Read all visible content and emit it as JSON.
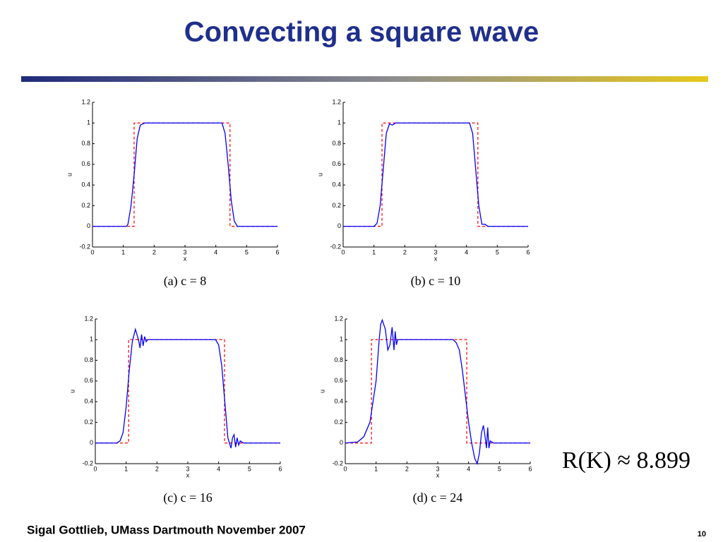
{
  "title": "Convecting a square wave",
  "footer": "Sigal Gottlieb, UMass Dartmouth November 2007",
  "page_number": "10",
  "annotation": "R(K) ≈ 8.899",
  "chart_data": [
    {
      "type": "line",
      "caption": "(a) c = 8",
      "xlabel": "x",
      "ylabel": "u",
      "xlim": [
        0,
        6
      ],
      "ylim": [
        -0.2,
        1.2
      ],
      "xticks": [
        0,
        1,
        2,
        3,
        4,
        5,
        6
      ],
      "yticks": [
        -0.2,
        0,
        0.2,
        0.4,
        0.6,
        0.8,
        1,
        1.2
      ],
      "series": [
        {
          "color": "#ff0000",
          "dash": true,
          "x": [
            0,
            1.35,
            1.35,
            4.46,
            4.46,
            6
          ],
          "values": [
            0,
            0,
            1,
            1,
            0,
            0
          ]
        },
        {
          "color": "#0000ff",
          "dash": false,
          "x": [
            0,
            1.1,
            1.15,
            1.25,
            1.35,
            1.45,
            1.55,
            1.7,
            4.2,
            4.3,
            4.4,
            4.5,
            4.6,
            4.7,
            6
          ],
          "values": [
            0,
            0,
            0.02,
            0.2,
            0.5,
            0.85,
            0.98,
            1,
            1,
            0.9,
            0.6,
            0.25,
            0.05,
            0,
            0
          ]
        }
      ]
    },
    {
      "type": "line",
      "caption": "(b) c = 10",
      "xlabel": "x",
      "ylabel": "u",
      "xlim": [
        0,
        6
      ],
      "ylim": [
        -0.2,
        1.2
      ],
      "xticks": [
        0,
        1,
        2,
        3,
        4,
        5,
        6
      ],
      "yticks": [
        -0.2,
        0,
        0.2,
        0.4,
        0.6,
        0.8,
        1,
        1.2
      ],
      "series": [
        {
          "color": "#ff0000",
          "dash": true,
          "x": [
            0,
            1.26,
            1.26,
            4.37,
            4.37,
            6
          ],
          "values": [
            0,
            0,
            1,
            1,
            0,
            0
          ]
        },
        {
          "color": "#0000ff",
          "dash": false,
          "x": [
            0,
            1.0,
            1.1,
            1.2,
            1.3,
            1.4,
            1.5,
            1.6,
            1.7,
            4.1,
            4.2,
            4.3,
            4.4,
            4.5,
            4.6,
            4.7,
            6
          ],
          "values": [
            0,
            0,
            0.03,
            0.2,
            0.55,
            0.9,
            0.99,
            0.98,
            1,
            1,
            0.9,
            0.55,
            0.2,
            0.02,
            0.02,
            0,
            0
          ]
        }
      ]
    },
    {
      "type": "line",
      "caption": "(c) c = 16",
      "xlabel": "x",
      "ylabel": "u",
      "xlim": [
        0,
        6
      ],
      "ylim": [
        -0.2,
        1.2
      ],
      "xticks": [
        0,
        1,
        2,
        3,
        4,
        5,
        6
      ],
      "yticks": [
        -0.2,
        0,
        0.2,
        0.4,
        0.6,
        0.8,
        1,
        1.2
      ],
      "series": [
        {
          "color": "#ff0000",
          "dash": true,
          "x": [
            0,
            1.08,
            1.08,
            4.19,
            4.19,
            6
          ],
          "values": [
            0,
            0,
            1,
            1,
            0,
            0
          ]
        },
        {
          "color": "#0000ff",
          "dash": false,
          "x": [
            0,
            0.7,
            0.8,
            0.9,
            1.0,
            1.1,
            1.2,
            1.3,
            1.4,
            1.45,
            1.5,
            1.55,
            1.6,
            1.65,
            1.7,
            3.9,
            4.0,
            4.1,
            4.2,
            4.3,
            4.4,
            4.45,
            4.5,
            4.55,
            4.6,
            4.65,
            4.7,
            4.8,
            6
          ],
          "values": [
            0,
            0,
            0.02,
            0.1,
            0.35,
            0.7,
            0.98,
            1.1,
            1,
            0.92,
            1.05,
            0.94,
            1.03,
            0.98,
            1,
            1,
            0.95,
            0.75,
            0.4,
            0.05,
            -0.05,
            0.05,
            0.08,
            -0.04,
            0.05,
            -0.02,
            0.02,
            0,
            0
          ]
        }
      ]
    },
    {
      "type": "line",
      "caption": "(d) c = 24",
      "xlabel": "x",
      "ylabel": "u",
      "xlim": [
        0,
        6
      ],
      "ylim": [
        -0.2,
        1.2
      ],
      "xticks": [
        0,
        1,
        2,
        3,
        4,
        5,
        6
      ],
      "yticks": [
        -0.2,
        0,
        0.2,
        0.4,
        0.6,
        0.8,
        1,
        1.2
      ],
      "series": [
        {
          "color": "#ff0000",
          "dash": true,
          "x": [
            0,
            0.85,
            0.85,
            3.94,
            3.94,
            6
          ],
          "values": [
            0,
            0,
            1,
            1,
            0,
            0
          ]
        },
        {
          "color": "#0000ff",
          "dash": false,
          "x": [
            0,
            0.4,
            0.6,
            0.8,
            1.0,
            1.1,
            1.15,
            1.2,
            1.3,
            1.38,
            1.45,
            1.52,
            1.58,
            1.62,
            1.66,
            1.7,
            3.5,
            3.6,
            3.7,
            3.8,
            3.9,
            4.0,
            4.1,
            4.2,
            4.28,
            4.35,
            4.42,
            4.48,
            4.54,
            4.58,
            4.62,
            4.66,
            4.7,
            4.8,
            6
          ],
          "values": [
            0,
            0.01,
            0.06,
            0.2,
            0.6,
            1,
            1.15,
            1.19,
            1.1,
            0.9,
            0.95,
            1.12,
            0.9,
            1.08,
            0.95,
            1,
            1,
            0.97,
            0.9,
            0.7,
            0.45,
            0.2,
            0,
            -0.15,
            -0.2,
            -0.1,
            0.1,
            0.17,
            0.05,
            -0.05,
            0.15,
            -0.05,
            0.02,
            0,
            0
          ]
        }
      ]
    }
  ]
}
